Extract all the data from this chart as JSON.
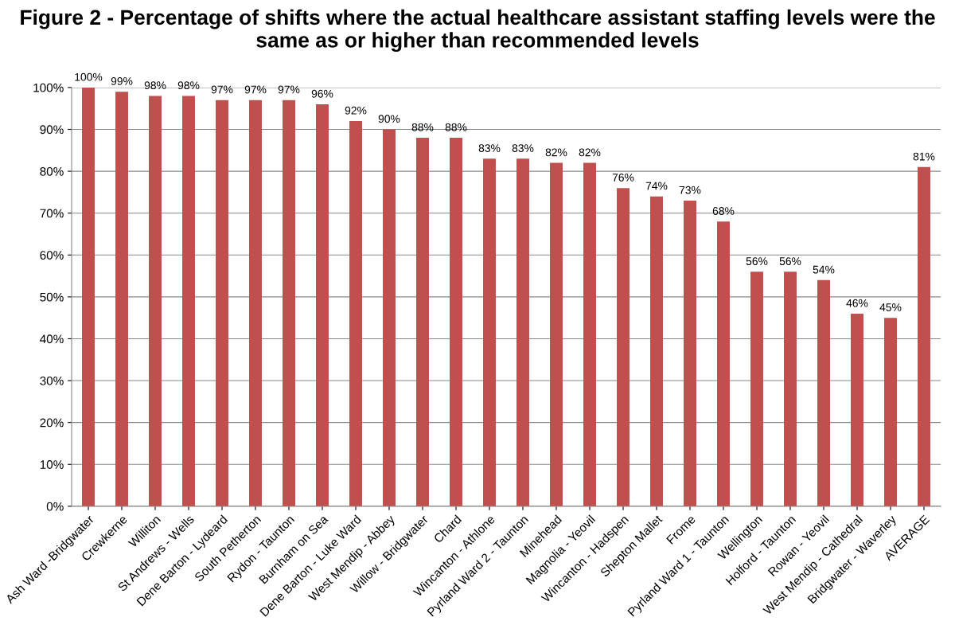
{
  "chart_data": {
    "type": "bar",
    "title": "Figure 2 - Percentage of shifts where the actual healthcare assistant staffing levels were the same as or higher than recommended levels",
    "categories": [
      "Ash Ward -Bridgwater",
      "Crewkerne",
      "Williton",
      "St Andrews - Wells",
      "Dene Barton - Lydeard",
      "South Petherton",
      "Rydon - Taunton",
      "Burnham on Sea",
      "Dene Barton - Luke Ward",
      "West Mendip - Abbey",
      "Willow - Bridgwater",
      "Chard",
      "Wincanton - Athlone",
      "Pyrland Ward 2 - Taunton",
      "Minehead",
      "Magnolia - Yeovil",
      "Wincanton - Hadspen",
      "Shepton Mallet",
      "Frome",
      "Pyrland Ward 1 - Taunton",
      "Wellington",
      "Holford - Taunton",
      "Rowan - Yeovil",
      "West Mendip - Cathedral",
      "Bridgwater - Waverley",
      "AVERAGE"
    ],
    "values": [
      100,
      99,
      98,
      98,
      97,
      97,
      97,
      96,
      92,
      90,
      88,
      88,
      83,
      83,
      82,
      82,
      76,
      74,
      73,
      68,
      56,
      56,
      54,
      46,
      45,
      81
    ],
    "value_labels": [
      "100%",
      "99%",
      "98%",
      "98%",
      "97%",
      "97%",
      "97%",
      "96%",
      "92%",
      "90%",
      "88%",
      "88%",
      "83%",
      "83%",
      "82%",
      "82%",
      "76%",
      "74%",
      "73%",
      "68%",
      "56%",
      "56%",
      "54%",
      "46%",
      "45%",
      "81%"
    ],
    "color": "#c0504d",
    "ylim": [
      0,
      100
    ],
    "yticks": [
      {
        "value": 0,
        "label": "0%"
      },
      {
        "value": 10,
        "label": "10%"
      },
      {
        "value": 20,
        "label": "20%"
      },
      {
        "value": 30,
        "label": "30%"
      },
      {
        "value": 40,
        "label": "40%"
      },
      {
        "value": 50,
        "label": "50%"
      },
      {
        "value": 60,
        "label": "60%"
      },
      {
        "value": 70,
        "label": "70%"
      },
      {
        "value": 80,
        "label": "80%"
      },
      {
        "value": 90,
        "label": "90%"
      },
      {
        "value": 100,
        "label": "100%"
      }
    ],
    "grid": "y",
    "legend": false
  }
}
